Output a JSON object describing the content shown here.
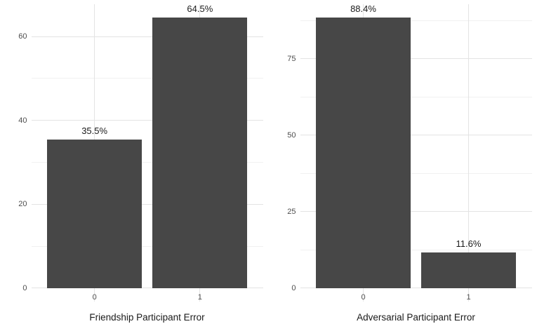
{
  "figure": {
    "background": "#ffffff"
  },
  "colors": {
    "bar": "#474747",
    "grid_major": "#e3e3e3",
    "grid_minor": "#f1f1f1",
    "tick_text": "#4d4d4d",
    "title_text": "#1a1a1a",
    "label_text": "#1a1a1a"
  },
  "chart_data": [
    {
      "type": "bar",
      "title": "",
      "xlabel": "Friendship Participant Error",
      "ylabel": "",
      "categories": [
        "0",
        "1"
      ],
      "values": [
        35.5,
        64.5
      ],
      "bar_labels": [
        "35.5%",
        "64.5%"
      ],
      "y_ticks": [
        0,
        20,
        40,
        60
      ],
      "y_minor_ticks": [
        10,
        30,
        50
      ],
      "ylim": [
        -3.2,
        67.7
      ],
      "grid": "on",
      "legend": "none",
      "bar_color": "#474747"
    },
    {
      "type": "bar",
      "title": "",
      "xlabel": "Adversarial Participant Error",
      "ylabel": "",
      "categories": [
        "0",
        "1"
      ],
      "values": [
        88.4,
        11.6
      ],
      "bar_labels": [
        "88.4%",
        "11.6%"
      ],
      "y_ticks": [
        0,
        25,
        50,
        75
      ],
      "y_minor_ticks": [
        12.5,
        37.5,
        62.5,
        87.5
      ],
      "ylim": [
        -4.4,
        92.8
      ],
      "grid": "on",
      "legend": "none",
      "bar_color": "#474747"
    }
  ]
}
